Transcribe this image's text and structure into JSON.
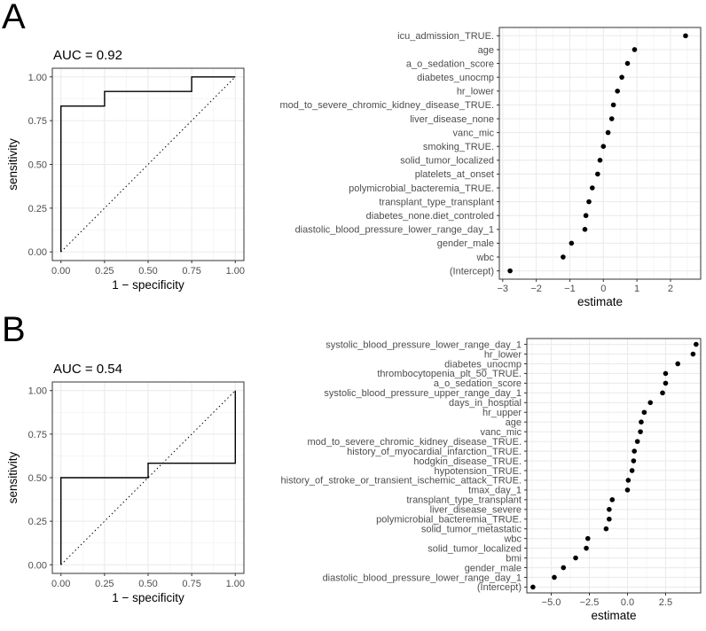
{
  "panels": [
    {
      "letter": "A"
    },
    {
      "letter": "B"
    }
  ],
  "chart_data": [
    {
      "id": "roc-a",
      "type": "line",
      "panel": "A",
      "title": "AUC = 0.92",
      "xlabel": "1 − specificity",
      "ylabel": "sensitivity",
      "xlim": [
        0,
        1
      ],
      "ylim": [
        0,
        1
      ],
      "x_ticks": [
        "0.00",
        "0.25",
        "0.50",
        "0.75",
        "1.00"
      ],
      "y_ticks": [
        "0.00",
        "0.25",
        "0.50",
        "0.75",
        "1.00"
      ],
      "grid": true,
      "diagonal": "dotted",
      "roc_x": [
        0,
        0,
        0.25,
        0.25,
        0.75,
        0.75,
        1
      ],
      "roc_y": [
        0,
        0.833,
        0.833,
        0.917,
        0.917,
        1,
        1
      ]
    },
    {
      "id": "coef-a",
      "type": "scatter",
      "panel": "A",
      "xlabel": "estimate",
      "xlim": [
        -3.1,
        2.9
      ],
      "x_ticks": [
        "−3",
        "−2",
        "−1",
        "0",
        "1",
        "2"
      ],
      "x_tick_values": [
        -3,
        -2,
        -1,
        0,
        1,
        2
      ],
      "grid": true,
      "categories": [
        "icu_admission_TRUE.",
        "age",
        "a_o_sedation_score",
        "diabetes_unocmp",
        "hr_lower",
        "mod_to_severe_chromic_kidney_disease_TRUE.",
        "liver_disease_none",
        "vanc_mic",
        "smoking_TRUE.",
        "solid_tumor_localized",
        "platelets_at_onset",
        "polymicrobial_bacteremia_TRUE.",
        "transplant_type_transplant",
        "diabetes_none.diet_controled",
        "diastolic_blood_pressure_lower_range_day_1",
        "gender_male",
        "wbc",
        "(Intercept)"
      ],
      "values": [
        2.45,
        0.93,
        0.72,
        0.55,
        0.42,
        0.3,
        0.25,
        0.14,
        0.0,
        -0.1,
        -0.17,
        -0.33,
        -0.43,
        -0.52,
        -0.55,
        -0.95,
        -1.2,
        -2.78
      ]
    },
    {
      "id": "roc-b",
      "type": "line",
      "panel": "B",
      "title": "AUC = 0.54",
      "xlabel": "1 − specificity",
      "ylabel": "sensitivity",
      "xlim": [
        0,
        1
      ],
      "ylim": [
        0,
        1
      ],
      "x_ticks": [
        "0.00",
        "0.25",
        "0.50",
        "0.75",
        "1.00"
      ],
      "y_ticks": [
        "0.00",
        "0.25",
        "0.50",
        "0.75",
        "1.00"
      ],
      "grid": true,
      "diagonal": "dotted",
      "roc_x": [
        0,
        0,
        0.5,
        0.5,
        1,
        1
      ],
      "roc_y": [
        0,
        0.5,
        0.5,
        0.583,
        0.583,
        1
      ]
    },
    {
      "id": "coef-b",
      "type": "scatter",
      "panel": "B",
      "xlabel": "estimate",
      "xlim": [
        -6.6,
        4.8
      ],
      "x_ticks": [
        "−5.0",
        "−2.5",
        "0.0",
        "2.5"
      ],
      "x_tick_values": [
        -5,
        -2.5,
        0,
        2.5
      ],
      "grid": true,
      "categories": [
        "systolic_blood_pressure_lower_range_day_1",
        "hr_lower",
        "diabetes_unocmp",
        "thrombocytopenia_plt_50_TRUE.",
        "a_o_sedation_score",
        "systolic_blood_pressure_upper_range_day_1",
        "days_in_hosptial",
        "hr_upper",
        "age",
        "vanc_mic",
        "mod_to_severe_chromic_kidney_disease_TRUE.",
        "history_of_myocardial_infarction_TRUE.",
        "hodgkin_disease_TRUE.",
        "hypotension_TRUE.",
        "history_of_stroke_or_transient_ischemic_attack_TRUE.",
        "tmax_day_1",
        "transplant_type_transplant",
        "liver_disease_severe",
        "polymicrobial_bacteremia_TRUE.",
        "solid_tumor_metastatic",
        "wbc",
        "solid_tumor_localized",
        "bmi",
        "gender_male",
        "diastolic_blood_pressure_lower_range_day_1",
        "(Intercept)"
      ],
      "values": [
        4.5,
        4.3,
        3.3,
        2.5,
        2.5,
        2.3,
        1.5,
        1.1,
        0.9,
        0.85,
        0.65,
        0.45,
        0.4,
        0.3,
        0.05,
        0.0,
        -1.0,
        -1.2,
        -1.2,
        -1.4,
        -2.6,
        -2.7,
        -3.4,
        -4.2,
        -4.8,
        -6.2
      ]
    }
  ]
}
